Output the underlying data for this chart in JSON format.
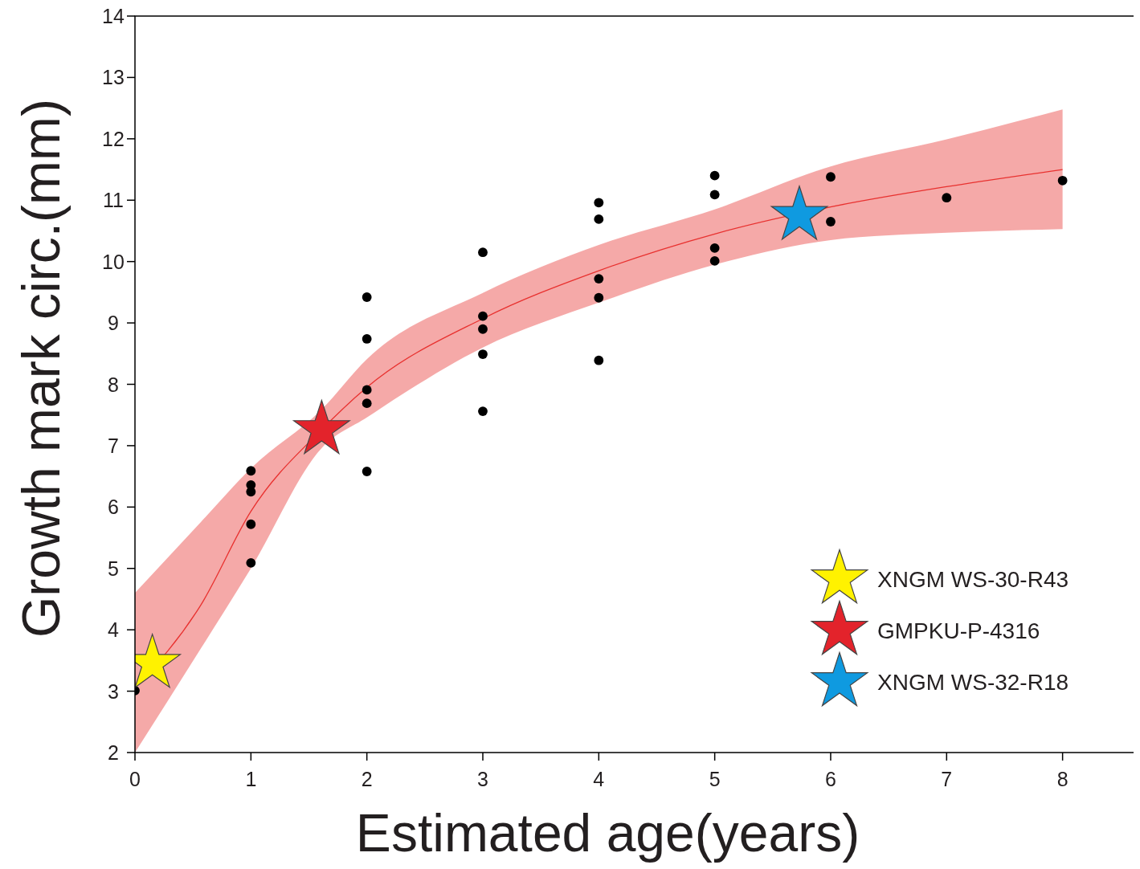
{
  "chart_data": {
    "type": "scatter",
    "xlabel": "Estimated age(years)",
    "ylabel": "Growth mark circ.(mm)",
    "xlim": [
      0,
      8.64
    ],
    "xticks": [
      0,
      1,
      2,
      3,
      4,
      5,
      6,
      7,
      8
    ],
    "ylim": [
      2,
      14
    ],
    "yticks": [
      2,
      3,
      4,
      5,
      6,
      7,
      8,
      9,
      10,
      11,
      12,
      13,
      14
    ],
    "grid": false,
    "legend": "bottom right",
    "series": [
      {
        "type": "line",
        "color": "#e8312f",
        "marker": "none",
        "line_style": "solid",
        "x": [
          0,
          0.57,
          1,
          1.61,
          2,
          3,
          4,
          5,
          6,
          7,
          8
        ],
        "values": [
          3.05,
          4.41,
          5.93,
          7.26,
          7.95,
          9.07,
          9.85,
          10.45,
          10.89,
          11.22,
          11.5
        ],
        "lower": [
          2,
          3.7,
          5.0,
          6.96,
          7.46,
          8.6,
          9.33,
          9.95,
          10.35,
          10.47,
          10.53
        ],
        "upper": [
          4.6,
          5.76,
          6.63,
          7.59,
          8.41,
          9.49,
          10.27,
          10.85,
          11.55,
          11.99,
          12.48
        ]
      },
      {
        "color": "#000000",
        "marker": "circle",
        "x": [
          0,
          1,
          1,
          1,
          1,
          1,
          2,
          2,
          2,
          2,
          2,
          3,
          3,
          3,
          3,
          3,
          4,
          4,
          4,
          4,
          4,
          5,
          5,
          5,
          5,
          6,
          6,
          7,
          8
        ],
        "values": [
          3.01,
          6.59,
          6.36,
          6.25,
          5.72,
          5.09,
          9.42,
          8.74,
          7.91,
          7.69,
          6.58,
          10.15,
          9.11,
          8.9,
          8.49,
          7.56,
          10.96,
          10.69,
          9.72,
          9.41,
          8.39,
          11.4,
          11.09,
          10.22,
          10.01,
          11.38,
          10.65,
          11.04,
          11.32
        ]
      },
      {
        "type": "scatter",
        "name": "XNGM WS-30-R43",
        "color": "#fff200",
        "marker": "star",
        "x": [
          0.15
        ],
        "values": [
          3.45
        ]
      },
      {
        "type": "scatter",
        "name": "GMPKU-P-4316",
        "color": "#e3232b",
        "marker": "star",
        "x": [
          1.61
        ],
        "values": [
          7.26
        ]
      },
      {
        "type": "scatter",
        "name": "XNGM WS-32-R18",
        "color": "#0f9ae0",
        "marker": "star",
        "x": [
          5.73
        ],
        "values": [
          10.75
        ]
      }
    ]
  }
}
